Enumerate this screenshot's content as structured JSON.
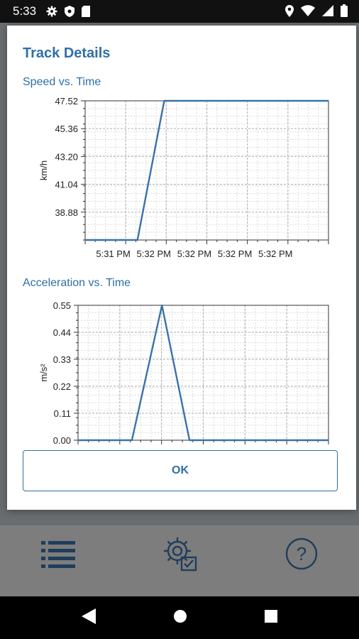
{
  "status_bar": {
    "time": "5:33",
    "left_icons": [
      "gear-icon",
      "shield-icon",
      "sd-card-icon"
    ],
    "right_icons": [
      "location-icon",
      "wifi-icon",
      "signal-icon",
      "battery-icon"
    ]
  },
  "dialog": {
    "title": "Track Details",
    "ok_label": "OK"
  },
  "bottom_bar": {
    "icons": [
      "list-icon",
      "settings-icon",
      "help-icon"
    ]
  },
  "nav_bar": {
    "icons": [
      "back-icon",
      "home-icon",
      "recents-icon"
    ]
  },
  "colors": {
    "accent": "#2f6fa6",
    "series": "#3a72a8",
    "grid": "#c8c8c8"
  },
  "chart_data": [
    {
      "type": "line",
      "title": "Speed vs. Time",
      "ylabel": "km/h",
      "yticks": [
        "47.52",
        "45.36",
        "43.20",
        "41.04",
        "38.88"
      ],
      "ytick_values": [
        47.52,
        45.36,
        43.2,
        41.04,
        38.88
      ],
      "ylim": [
        36.72,
        47.52
      ],
      "xticks": [
        "5:31 PM",
        "5:32 PM",
        "5:32 PM",
        "5:32 PM",
        "5:32 PM"
      ],
      "xlim": [
        0,
        100
      ],
      "x": [
        0,
        21.5,
        32.5,
        100
      ],
      "y": [
        36.72,
        36.72,
        47.52,
        47.52
      ],
      "grid": true
    },
    {
      "type": "line",
      "title": "Acceleration vs. Time",
      "ylabel": "m/s²",
      "yticks": [
        "0.55",
        "0.44",
        "0.33",
        "0.22",
        "0.11",
        "0.00"
      ],
      "ytick_values": [
        0.55,
        0.44,
        0.33,
        0.22,
        0.11,
        0.0
      ],
      "ylim": [
        0,
        0.55
      ],
      "xticks": [],
      "xlim": [
        0,
        100
      ],
      "x": [
        0,
        21.5,
        33.5,
        44.5,
        100
      ],
      "y": [
        0,
        0,
        0.55,
        0,
        0
      ],
      "grid": true
    }
  ]
}
